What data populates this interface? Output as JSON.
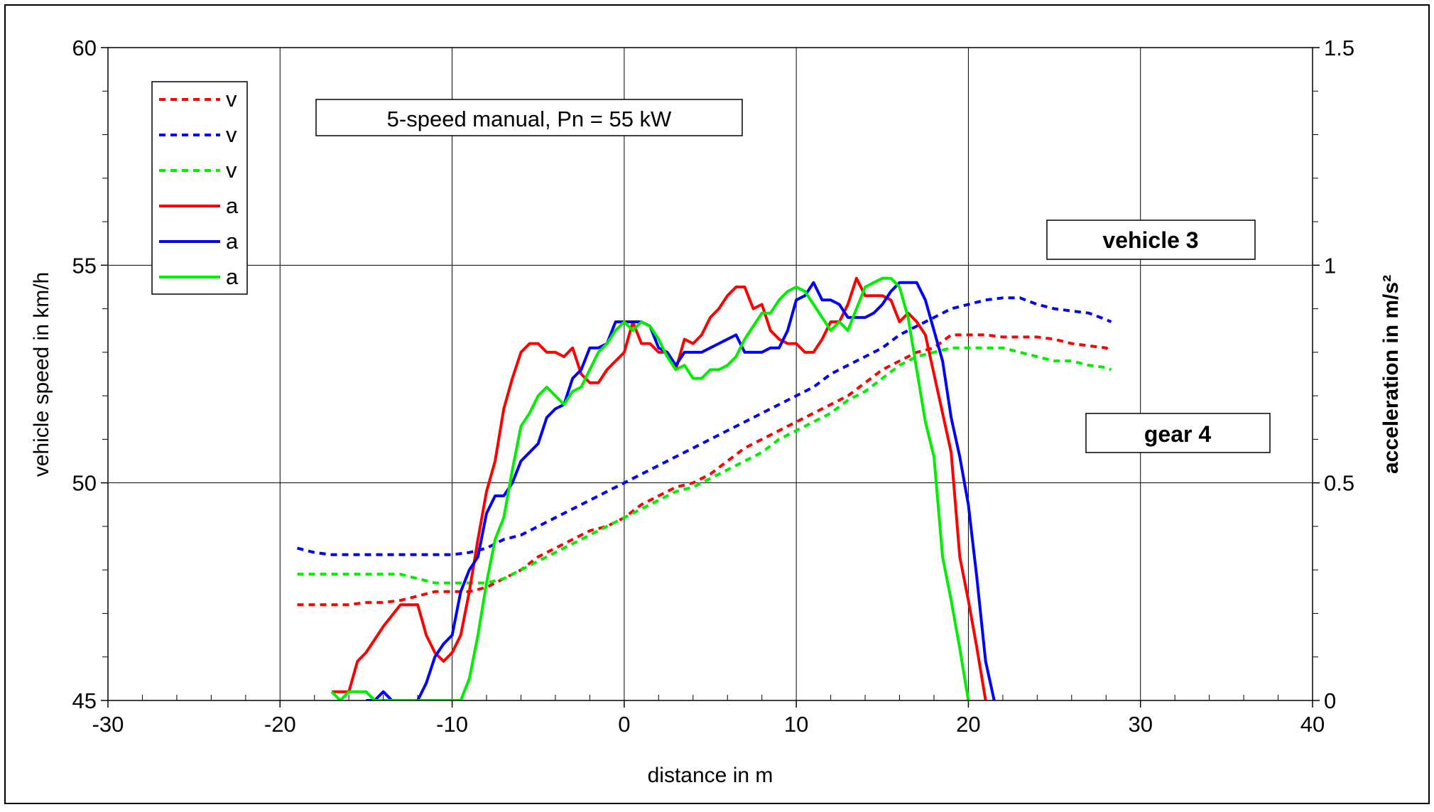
{
  "chart_data": {
    "type": "line",
    "title": "",
    "xlabel": "distance in m",
    "ylabel": "vehicle speed in km/h",
    "y2label": "acceleration in m/s²",
    "xlim": [
      -30,
      40
    ],
    "ylim": [
      45,
      60
    ],
    "y2lim": [
      0,
      1.5
    ],
    "x_ticks": [
      "-30",
      "-20",
      "-10",
      "0",
      "10",
      "20",
      "30",
      "40"
    ],
    "y_ticks": [
      "45",
      "50",
      "55",
      "60"
    ],
    "y2_ticks": [
      "0",
      "0.5",
      "1",
      "1.5"
    ],
    "grid": true,
    "legend_position": "top-left",
    "annotations": {
      "config": "5-speed manual, Pn = 55 kW",
      "vehicle": "vehicle 3",
      "gear": "gear 4"
    },
    "series": [
      {
        "name": "v",
        "axis": "left",
        "style": "dashed",
        "color": "#ff0000",
        "x": [
          -19,
          -18,
          -17,
          -16,
          -15,
          -14,
          -13,
          -12,
          -11,
          -10,
          -9,
          -8,
          -7,
          -6,
          -5,
          -4,
          -3,
          -2,
          -1,
          0,
          1,
          2,
          3,
          4,
          5,
          6,
          7,
          8,
          9,
          10,
          11,
          12,
          13,
          14,
          15,
          16,
          17,
          18,
          19,
          20,
          21,
          22,
          23,
          24,
          25,
          26,
          27,
          28,
          28.3
        ],
        "y": [
          47.2,
          47.2,
          47.2,
          47.2,
          47.25,
          47.25,
          47.3,
          47.4,
          47.5,
          47.5,
          47.5,
          47.6,
          47.8,
          48.0,
          48.3,
          48.5,
          48.7,
          48.9,
          49.0,
          49.2,
          49.5,
          49.7,
          49.9,
          50.0,
          50.2,
          50.5,
          50.8,
          51.0,
          51.2,
          51.4,
          51.6,
          51.8,
          52.0,
          52.3,
          52.6,
          52.8,
          53.0,
          53.1,
          53.4,
          53.4,
          53.4,
          53.35,
          53.35,
          53.35,
          53.3,
          53.2,
          53.15,
          53.1,
          53.0
        ]
      },
      {
        "name": "v",
        "axis": "left",
        "style": "dashed",
        "color": "#0000ff",
        "x": [
          -19,
          -18,
          -17,
          -16,
          -15,
          -14,
          -13,
          -12,
          -11,
          -10,
          -9,
          -8,
          -7,
          -6,
          -5,
          -4,
          -3,
          -2,
          -1,
          0,
          1,
          2,
          3,
          4,
          5,
          6,
          7,
          8,
          9,
          10,
          11,
          12,
          13,
          14,
          15,
          16,
          17,
          18,
          19,
          20,
          21,
          22,
          23,
          24,
          25,
          26,
          27,
          28,
          28.3
        ],
        "y": [
          48.5,
          48.4,
          48.35,
          48.35,
          48.35,
          48.35,
          48.35,
          48.35,
          48.35,
          48.35,
          48.4,
          48.5,
          48.7,
          48.8,
          49.0,
          49.2,
          49.4,
          49.6,
          49.8,
          50.0,
          50.2,
          50.4,
          50.6,
          50.8,
          51.0,
          51.2,
          51.4,
          51.6,
          51.8,
          52.0,
          52.2,
          52.5,
          52.7,
          52.9,
          53.1,
          53.4,
          53.6,
          53.8,
          54.0,
          54.1,
          54.2,
          54.25,
          54.25,
          54.1,
          54.0,
          53.95,
          53.9,
          53.75,
          53.7
        ]
      },
      {
        "name": "v",
        "axis": "left",
        "style": "dashed",
        "color": "#00ee00",
        "x": [
          -19,
          -18,
          -17,
          -16,
          -15,
          -14,
          -13,
          -12,
          -11,
          -10,
          -9,
          -8,
          -7,
          -6,
          -5,
          -4,
          -3,
          -2,
          -1,
          0,
          1,
          2,
          3,
          4,
          5,
          6,
          7,
          8,
          9,
          10,
          11,
          12,
          13,
          14,
          15,
          16,
          17,
          18,
          19,
          20,
          21,
          22,
          23,
          24,
          25,
          26,
          27,
          28,
          28.3
        ],
        "y": [
          47.9,
          47.9,
          47.9,
          47.9,
          47.9,
          47.9,
          47.9,
          47.8,
          47.7,
          47.7,
          47.7,
          47.7,
          47.8,
          48.0,
          48.2,
          48.4,
          48.6,
          48.8,
          49.0,
          49.2,
          49.4,
          49.6,
          49.8,
          49.9,
          50.1,
          50.3,
          50.5,
          50.7,
          51.0,
          51.2,
          51.4,
          51.6,
          51.9,
          52.1,
          52.4,
          52.7,
          52.9,
          53.0,
          53.1,
          53.1,
          53.1,
          53.1,
          53.0,
          52.9,
          52.8,
          52.8,
          52.7,
          52.65,
          52.6
        ]
      },
      {
        "name": "a",
        "axis": "right",
        "style": "solid",
        "color": "#ff0000",
        "x": [
          -17,
          -16,
          -15.5,
          -15,
          -14,
          -13,
          -12,
          -11.5,
          -11,
          -10.5,
          -10,
          -9.5,
          -9,
          -8.5,
          -8,
          -7.5,
          -7,
          -6.5,
          -6,
          -5.5,
          -5,
          -4.5,
          -4,
          -3.5,
          -3,
          -2.5,
          -2,
          -1.5,
          -1,
          -0.5,
          0,
          0.5,
          1,
          1.5,
          2,
          2.5,
          3,
          3.5,
          4,
          4.5,
          5,
          5.5,
          6,
          6.5,
          7,
          7.5,
          8,
          8.5,
          9,
          9.5,
          10,
          10.5,
          11,
          11.5,
          12,
          12.5,
          13,
          13.5,
          14,
          14.5,
          15,
          15.5,
          16,
          16.5,
          17,
          17.5,
          18,
          18.5,
          19,
          19.5,
          20,
          20.5,
          21
        ],
        "y": [
          0.02,
          0.02,
          0.09,
          0.11,
          0.17,
          0.22,
          0.22,
          0.15,
          0.11,
          0.09,
          0.11,
          0.15,
          0.25,
          0.37,
          0.48,
          0.55,
          0.67,
          0.74,
          0.8,
          0.82,
          0.82,
          0.8,
          0.8,
          0.79,
          0.81,
          0.75,
          0.73,
          0.73,
          0.76,
          0.78,
          0.8,
          0.87,
          0.82,
          0.82,
          0.8,
          0.8,
          0.76,
          0.83,
          0.82,
          0.84,
          0.88,
          0.9,
          0.93,
          0.95,
          0.95,
          0.9,
          0.91,
          0.85,
          0.83,
          0.82,
          0.82,
          0.8,
          0.8,
          0.83,
          0.87,
          0.87,
          0.91,
          0.97,
          0.93,
          0.93,
          0.93,
          0.92,
          0.87,
          0.89,
          0.87,
          0.84,
          0.75,
          0.66,
          0.57,
          0.33,
          0.23,
          0.12,
          0.0
        ]
      },
      {
        "name": "a",
        "axis": "right",
        "style": "solid",
        "color": "#0000ff",
        "x": [
          -15,
          -14.5,
          -14,
          -13.5,
          -13,
          -12.5,
          -12,
          -11.5,
          -11,
          -10.5,
          -10,
          -9.5,
          -9,
          -8.5,
          -8,
          -7.5,
          -7,
          -6.5,
          -6,
          -5.5,
          -5,
          -4.5,
          -4,
          -3.5,
          -3,
          -2.5,
          -2,
          -1.5,
          -1,
          -0.5,
          0,
          0.5,
          1,
          1.5,
          2,
          2.5,
          3,
          3.5,
          4,
          4.5,
          5,
          5.5,
          6,
          6.5,
          7,
          7.5,
          8,
          8.5,
          9,
          9.5,
          10,
          10.5,
          11,
          11.5,
          12,
          12.5,
          13,
          13.5,
          14,
          14.5,
          15,
          15.5,
          16,
          16.5,
          17,
          17.5,
          18,
          18.5,
          19,
          19.5,
          20,
          20.5,
          21,
          21.5
        ],
        "y": [
          0.0,
          0.0,
          0.02,
          0.0,
          0.0,
          0.0,
          0.0,
          0.04,
          0.1,
          0.13,
          0.15,
          0.25,
          0.3,
          0.33,
          0.43,
          0.47,
          0.47,
          0.5,
          0.55,
          0.57,
          0.59,
          0.65,
          0.67,
          0.68,
          0.74,
          0.76,
          0.81,
          0.81,
          0.82,
          0.87,
          0.87,
          0.87,
          0.87,
          0.86,
          0.81,
          0.8,
          0.77,
          0.8,
          0.8,
          0.8,
          0.81,
          0.82,
          0.83,
          0.84,
          0.8,
          0.8,
          0.8,
          0.81,
          0.81,
          0.85,
          0.92,
          0.93,
          0.96,
          0.92,
          0.92,
          0.91,
          0.88,
          0.88,
          0.88,
          0.89,
          0.91,
          0.94,
          0.96,
          0.96,
          0.96,
          0.92,
          0.85,
          0.78,
          0.65,
          0.56,
          0.45,
          0.28,
          0.09,
          0.0
        ]
      },
      {
        "name": "a",
        "axis": "right",
        "style": "solid",
        "color": "#00ee00",
        "x": [
          -17,
          -16.5,
          -16,
          -15.5,
          -15,
          -14.5,
          -14,
          -13.5,
          -13,
          -12.5,
          -12,
          -11.5,
          -11,
          -10.5,
          -10,
          -9.5,
          -9,
          -8.5,
          -8,
          -7.5,
          -7,
          -6.5,
          -6,
          -5.5,
          -5,
          -4.5,
          -4,
          -3.5,
          -3,
          -2.5,
          -2,
          -1.5,
          -1,
          -0.5,
          0,
          0.5,
          1,
          1.5,
          2,
          2.5,
          3,
          3.5,
          4,
          4.5,
          5,
          5.5,
          6,
          6.5,
          7,
          7.5,
          8,
          8.5,
          9,
          9.5,
          10,
          10.5,
          11,
          11.5,
          12,
          12.5,
          13,
          13.5,
          14,
          14.5,
          15,
          15.5,
          16,
          16.5,
          17,
          17.5,
          18,
          18.5,
          19,
          19.5,
          20
        ],
        "y": [
          0.02,
          0.0,
          0.02,
          0.02,
          0.02,
          0.0,
          0.0,
          0.0,
          0.0,
          0.0,
          0.0,
          0.0,
          0.0,
          0.0,
          0.0,
          0.0,
          0.05,
          0.15,
          0.27,
          0.37,
          0.42,
          0.53,
          0.63,
          0.66,
          0.7,
          0.72,
          0.7,
          0.68,
          0.71,
          0.72,
          0.76,
          0.8,
          0.82,
          0.85,
          0.87,
          0.85,
          0.87,
          0.86,
          0.83,
          0.79,
          0.76,
          0.77,
          0.74,
          0.74,
          0.76,
          0.76,
          0.77,
          0.79,
          0.83,
          0.86,
          0.89,
          0.89,
          0.92,
          0.94,
          0.95,
          0.94,
          0.91,
          0.88,
          0.85,
          0.87,
          0.85,
          0.9,
          0.95,
          0.96,
          0.97,
          0.97,
          0.95,
          0.88,
          0.76,
          0.64,
          0.56,
          0.33,
          0.23,
          0.12,
          0.0
        ]
      }
    ]
  }
}
